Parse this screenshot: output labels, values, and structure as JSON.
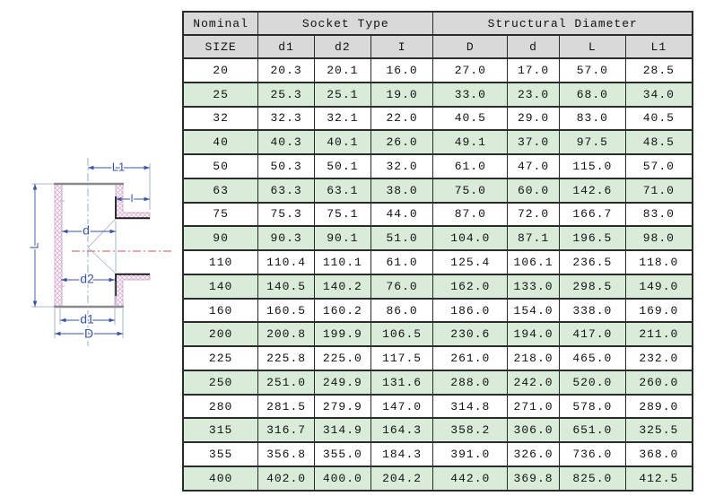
{
  "diagram": {
    "labels": {
      "L1": "L1",
      "I": "I",
      "L": "L",
      "d": "d",
      "d2": "d2",
      "d1": "d1",
      "D": "D"
    },
    "colors": {
      "dimension": "#3a55a0",
      "hatch": "#dba8d2",
      "wall_edge": "#c79cc0",
      "outline_gray": "#8a8a8a",
      "socket_edge": "#1a1a1a",
      "centerline_red": "#b65f5a",
      "centerline_blue": "#93a4bd"
    }
  },
  "table": {
    "header_groups": [
      {
        "label": "Nominal",
        "colspan": 1
      },
      {
        "label": "Socket Type",
        "colspan": 3
      },
      {
        "label": "Structural Diameter",
        "colspan": 4
      }
    ],
    "columns": [
      "SIZE",
      "d1",
      "d2",
      "I",
      "D",
      "d",
      "L",
      "L1"
    ],
    "rows": [
      [
        "20",
        "20.3",
        "20.1",
        "16.0",
        "27.0",
        "17.0",
        "57.0",
        "28.5"
      ],
      [
        "25",
        "25.3",
        "25.1",
        "19.0",
        "33.0",
        "23.0",
        "68.0",
        "34.0"
      ],
      [
        "32",
        "32.3",
        "32.1",
        "22.0",
        "40.5",
        "29.0",
        "83.0",
        "40.5"
      ],
      [
        "40",
        "40.3",
        "40.1",
        "26.0",
        "49.1",
        "37.0",
        "97.5",
        "48.5"
      ],
      [
        "50",
        "50.3",
        "50.1",
        "32.0",
        "61.0",
        "47.0",
        "115.0",
        "57.0"
      ],
      [
        "63",
        "63.3",
        "63.1",
        "38.0",
        "75.0",
        "60.0",
        "142.6",
        "71.0"
      ],
      [
        "75",
        "75.3",
        "75.1",
        "44.0",
        "87.0",
        "72.0",
        "166.7",
        "83.0"
      ],
      [
        "90",
        "90.3",
        "90.1",
        "51.0",
        "104.0",
        "87.1",
        "196.5",
        "98.0"
      ],
      [
        "110",
        "110.4",
        "110.1",
        "61.0",
        "125.4",
        "106.1",
        "236.5",
        "118.0"
      ],
      [
        "140",
        "140.5",
        "140.2",
        "76.0",
        "162.0",
        "133.0",
        "298.5",
        "149.0"
      ],
      [
        "160",
        "160.5",
        "160.2",
        "86.0",
        "186.0",
        "154.0",
        "338.0",
        "169.0"
      ],
      [
        "200",
        "200.8",
        "199.9",
        "106.5",
        "230.6",
        "194.0",
        "417.0",
        "211.0"
      ],
      [
        "225",
        "225.8",
        "225.0",
        "117.5",
        "261.0",
        "218.0",
        "465.0",
        "232.0"
      ],
      [
        "250",
        "251.0",
        "249.9",
        "131.6",
        "288.0",
        "242.0",
        "520.0",
        "260.0"
      ],
      [
        "280",
        "281.5",
        "279.9",
        "147.0",
        "314.8",
        "271.0",
        "578.0",
        "289.0"
      ],
      [
        "315",
        "316.7",
        "314.9",
        "164.3",
        "358.2",
        "306.0",
        "651.0",
        "325.5"
      ],
      [
        "355",
        "356.8",
        "355.0",
        "184.3",
        "391.0",
        "326.0",
        "736.0",
        "368.0"
      ],
      [
        "400",
        "402.0",
        "400.0",
        "204.2",
        "442.0",
        "369.8",
        "825.0",
        "412.5"
      ]
    ],
    "colors": {
      "header_bg": "#d9d9d9",
      "row_alt_bg": "#d9ecd9",
      "border": "#2b2b2b"
    }
  }
}
